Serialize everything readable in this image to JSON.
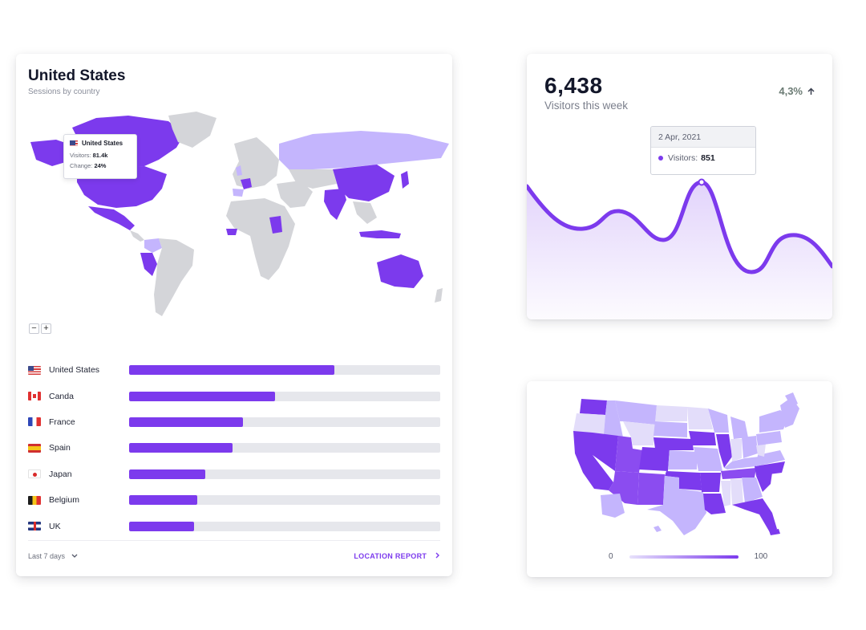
{
  "country_card": {
    "title": "United States",
    "subtitle": "Sessions by country",
    "tooltip": {
      "country": "United States",
      "visitors_label": "Visitors:",
      "visitors_value": "81.4k",
      "change_label": "Change:",
      "change_value": "24%"
    },
    "zoom_out": "−",
    "zoom_in": "+",
    "countries": [
      {
        "name": "United States",
        "flag": "us",
        "share": 0.66
      },
      {
        "name": "Canda",
        "flag": "ca",
        "share": 0.47
      },
      {
        "name": "France",
        "flag": "fr",
        "share": 0.365
      },
      {
        "name": "Spain",
        "flag": "es",
        "share": 0.333
      },
      {
        "name": "Japan",
        "flag": "jp",
        "share": 0.245
      },
      {
        "name": "Belgium",
        "flag": "be",
        "share": 0.218
      },
      {
        "name": "UK",
        "flag": "uk",
        "share": 0.21
      }
    ],
    "footer": {
      "range": "Last 7 days",
      "range_icon": "chevron-down-icon",
      "report": "LOCATION REPORT",
      "report_icon": "chevron-right-icon"
    }
  },
  "visitors_card": {
    "value": "6,438",
    "label": "Visitors this week",
    "change": "4,3%",
    "change_icon": "arrow-up-icon",
    "tooltip": {
      "date": "2 Apr, 2021",
      "label": "Visitors:",
      "value": "851"
    }
  },
  "us_map_card": {
    "legend_min": "0",
    "legend_max": "100"
  },
  "colors": {
    "accent": "#7c3aed",
    "light": "#c4b5fd",
    "land": "#d4d5d9",
    "track": "#e6e7ec"
  }
}
